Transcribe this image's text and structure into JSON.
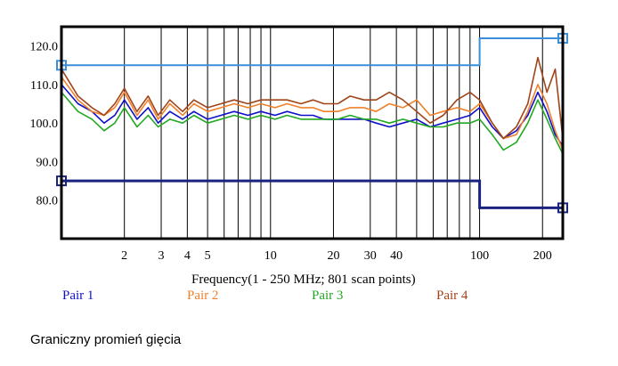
{
  "chart_data": {
    "type": "line",
    "title": "",
    "xlabel": "Frequency(1 - 250 MHz; 801 scan points)",
    "ylabel": "",
    "x_scale": "log",
    "xlim": [
      1,
      250
    ],
    "ylim": [
      70,
      125
    ],
    "grid": true,
    "x_tick_labels": [
      "2",
      "3",
      "4",
      "5",
      "10",
      "20",
      "30",
      "40",
      "100",
      "200"
    ],
    "x_tick_values": [
      2,
      3,
      4,
      5,
      10,
      20,
      30,
      40,
      100,
      200
    ],
    "y_tick_labels": [
      "80.0",
      "90.0",
      "100.0",
      "110.0",
      "120.0"
    ],
    "y_tick_values": [
      80,
      90,
      100,
      110,
      120
    ],
    "limit_lines": [
      {
        "name": "upper-limit",
        "color": "#3a8fd8",
        "points": [
          [
            1,
            115
          ],
          [
            100,
            115
          ],
          [
            100,
            122
          ],
          [
            250,
            122
          ]
        ]
      },
      {
        "name": "lower-limit",
        "color": "#1a237e",
        "points": [
          [
            1,
            85
          ],
          [
            100,
            85
          ],
          [
            100,
            78
          ],
          [
            250,
            78
          ]
        ]
      }
    ],
    "series": [
      {
        "name": "Pair 1",
        "color": "#1010c8",
        "x": [
          1,
          1.2,
          1.4,
          1.6,
          1.8,
          2,
          2.3,
          2.6,
          2.9,
          3.3,
          3.8,
          4.3,
          5,
          5.8,
          6.7,
          7.8,
          9,
          10.5,
          12,
          14,
          16,
          18,
          21,
          24,
          28,
          32,
          37,
          43,
          50,
          58,
          67,
          78,
          90,
          100,
          115,
          130,
          150,
          170,
          190,
          210,
          230,
          250
        ],
        "values": [
          110,
          105,
          103,
          100,
          102,
          106,
          101,
          104,
          100,
          103,
          101,
          103,
          101,
          102,
          103,
          102,
          103,
          102,
          103,
          102,
          102,
          101,
          101,
          101,
          101,
          100,
          99,
          100,
          101,
          99,
          100,
          101,
          102,
          104,
          99,
          96,
          98,
          102,
          108,
          103,
          97,
          94
        ]
      },
      {
        "name": "Pair 2",
        "color": "#f0802a",
        "x": [
          1,
          1.2,
          1.4,
          1.6,
          1.8,
          2,
          2.3,
          2.6,
          2.9,
          3.3,
          3.8,
          4.3,
          5,
          5.8,
          6.7,
          7.8,
          9,
          10.5,
          12,
          14,
          16,
          18,
          21,
          24,
          28,
          32,
          37,
          43,
          50,
          58,
          67,
          78,
          90,
          100,
          115,
          130,
          150,
          170,
          190,
          210,
          230,
          250
        ],
        "values": [
          112,
          106,
          103,
          102,
          104,
          108,
          102,
          106,
          101,
          105,
          102,
          105,
          103,
          104,
          105,
          104,
          105,
          104,
          105,
          104,
          104,
          103,
          103,
          104,
          104,
          103,
          105,
          104,
          106,
          102,
          103,
          104,
          103,
          105,
          100,
          96,
          97,
          103,
          110,
          105,
          98,
          93
        ]
      },
      {
        "name": "Pair 3",
        "color": "#22a822",
        "x": [
          1,
          1.2,
          1.4,
          1.6,
          1.8,
          2,
          2.3,
          2.6,
          2.9,
          3.3,
          3.8,
          4.3,
          5,
          5.8,
          6.7,
          7.8,
          9,
          10.5,
          12,
          14,
          16,
          18,
          21,
          24,
          28,
          32,
          37,
          43,
          50,
          58,
          67,
          78,
          90,
          100,
          115,
          130,
          150,
          170,
          190,
          210,
          230,
          250
        ],
        "values": [
          108,
          103,
          101,
          98,
          100,
          104,
          99,
          102,
          99,
          101,
          100,
          102,
          100,
          101,
          102,
          101,
          102,
          101,
          102,
          101,
          101,
          101,
          101,
          102,
          101,
          101,
          100,
          101,
          100,
          99,
          99,
          100,
          100,
          101,
          97,
          93,
          95,
          100,
          106,
          101,
          96,
          92
        ]
      },
      {
        "name": "Pair 4",
        "color": "#a0441a",
        "x": [
          1,
          1.2,
          1.4,
          1.6,
          1.8,
          2,
          2.3,
          2.6,
          2.9,
          3.3,
          3.8,
          4.3,
          5,
          5.8,
          6.7,
          7.8,
          9,
          10.5,
          12,
          14,
          16,
          18,
          21,
          24,
          28,
          32,
          37,
          43,
          50,
          58,
          67,
          78,
          90,
          100,
          115,
          130,
          150,
          170,
          190,
          210,
          230,
          250
        ],
        "values": [
          114,
          107,
          104,
          102,
          105,
          109,
          103,
          107,
          102,
          106,
          103,
          106,
          104,
          105,
          106,
          105,
          106,
          106,
          106,
          105,
          106,
          105,
          105,
          107,
          106,
          106,
          108,
          106,
          103,
          100,
          102,
          106,
          108,
          106,
          100,
          96,
          99,
          105,
          117,
          108,
          114,
          96
        ]
      }
    ]
  },
  "caption": "Graniczny promień gięcia"
}
